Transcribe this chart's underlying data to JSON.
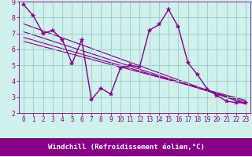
{
  "title": "",
  "xlabel": "Windchill (Refroidissement éolien,°C)",
  "bg_color": "#cff0eb",
  "line_color": "#880088",
  "grid_color": "#99cccc",
  "xlim": [
    -0.5,
    23.5
  ],
  "ylim": [
    2,
    9
  ],
  "xticks": [
    0,
    1,
    2,
    3,
    4,
    5,
    6,
    7,
    8,
    9,
    10,
    11,
    12,
    13,
    14,
    15,
    16,
    17,
    18,
    19,
    20,
    21,
    22,
    23
  ],
  "yticks": [
    2,
    3,
    4,
    5,
    6,
    7,
    8,
    9
  ],
  "series_x": [
    0,
    1,
    2,
    3,
    4,
    5,
    6,
    7,
    8,
    9,
    10,
    11,
    12,
    13,
    14,
    15,
    16,
    17,
    18,
    19,
    20,
    21,
    22,
    23
  ],
  "series_y": [
    8.8,
    8.1,
    7.0,
    7.2,
    6.6,
    5.1,
    6.6,
    2.85,
    3.55,
    3.2,
    4.8,
    5.0,
    4.9,
    7.2,
    7.55,
    8.5,
    7.4,
    5.15,
    4.4,
    3.5,
    3.1,
    2.75,
    2.65,
    2.65
  ],
  "trend_lines": [
    {
      "x0": 0,
      "x1": 23,
      "y0": 7.6,
      "y1": 2.55
    },
    {
      "x0": 0,
      "x1": 23,
      "y0": 7.1,
      "y1": 2.6
    },
    {
      "x0": 0,
      "x1": 23,
      "y0": 6.75,
      "y1": 2.7
    },
    {
      "x0": 0,
      "x1": 23,
      "y0": 6.5,
      "y1": 2.8
    }
  ],
  "marker": "*",
  "marker_size": 4,
  "linewidth": 1.0,
  "xlabel_bg": "#880088",
  "xlabel_fg": "#ffffff",
  "xlabel_fontsize": 6.5,
  "tick_fontsize": 5.5,
  "ytick_fontsize": 6.0
}
